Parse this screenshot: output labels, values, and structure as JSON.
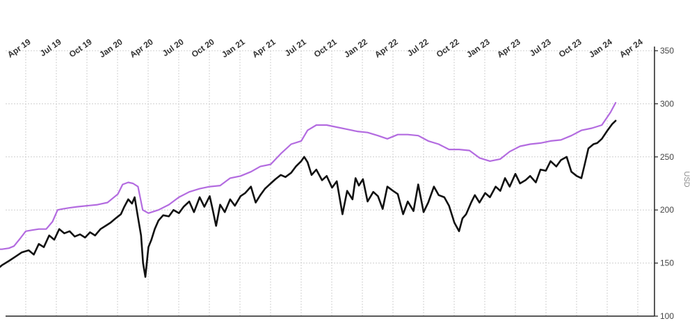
{
  "chart_data": {
    "type": "line",
    "x_tick_labels": [
      "Apr 19",
      "Jul 19",
      "Oct 19",
      "Jan 20",
      "Apr 20",
      "Jul 20",
      "Oct 20",
      "Jan 21",
      "Apr 21",
      "Jul 21",
      "Oct 21",
      "Jan 22",
      "Apr 22",
      "Jul 22",
      "Oct 22",
      "Jan 23",
      "Apr 23",
      "Jul 23",
      "Oct 23",
      "Jan 24",
      "Apr 24"
    ],
    "y_ticks": [
      100,
      150,
      200,
      250,
      300,
      350
    ],
    "ylim": [
      100,
      350
    ],
    "ylabel": "USD",
    "grid": true,
    "colors": {
      "price": "#111111",
      "high": "#b36be0",
      "grid": "#cfcfcf",
      "axis": "#222222"
    },
    "series": [
      {
        "key": "high",
        "color": "#b36be0",
        "x": [
          "2019-01-01",
          "2019-01-20",
          "2019-02-10",
          "2019-02-25",
          "2019-03-15",
          "2019-04-01",
          "2019-04-20",
          "2019-05-10",
          "2019-06-01",
          "2019-06-20",
          "2019-07-05",
          "2019-07-20",
          "2019-08-10",
          "2019-09-01",
          "2019-10-01",
          "2019-11-01",
          "2019-12-01",
          "2020-01-01",
          "2020-01-15",
          "2020-02-01",
          "2020-02-15",
          "2020-03-01",
          "2020-03-15",
          "2020-04-01",
          "2020-05-01",
          "2020-06-01",
          "2020-07-01",
          "2020-08-01",
          "2020-09-01",
          "2020-10-01",
          "2020-11-01",
          "2020-12-01",
          "2021-01-01",
          "2021-02-01",
          "2021-03-01",
          "2021-04-01",
          "2021-05-01",
          "2021-06-01",
          "2021-07-01",
          "2021-07-20",
          "2021-08-15",
          "2021-09-15",
          "2021-10-15",
          "2021-11-15",
          "2021-12-15",
          "2022-01-15",
          "2022-02-15",
          "2022-03-15",
          "2022-04-15",
          "2022-05-15",
          "2022-06-15",
          "2022-07-15",
          "2022-08-15",
          "2022-09-15",
          "2022-10-15",
          "2022-11-15",
          "2022-12-15",
          "2023-01-15",
          "2023-02-15",
          "2023-03-15",
          "2023-04-15",
          "2023-05-15",
          "2023-06-15",
          "2023-07-15",
          "2023-08-15",
          "2023-09-15",
          "2023-10-15",
          "2023-11-15",
          "2023-12-15",
          "2024-01-10",
          "2024-01-25"
        ],
        "values": [
          163,
          163,
          164,
          166,
          173,
          180,
          181,
          182,
          182,
          189,
          200,
          201,
          202,
          203,
          204,
          205,
          207,
          215,
          224,
          226,
          225,
          222,
          200,
          197,
          200,
          205,
          212,
          217,
          220,
          222,
          223,
          230,
          232,
          236,
          241,
          243,
          253,
          262,
          265,
          275,
          280,
          280,
          278,
          276,
          274,
          273,
          270,
          267,
          271,
          271,
          270,
          265,
          262,
          257,
          257,
          256,
          249,
          246,
          248,
          255,
          260,
          262,
          263,
          265,
          266,
          270,
          275,
          277,
          280,
          292,
          301
        ]
      },
      {
        "key": "price",
        "color": "#111111",
        "x": [
          "2019-01-01",
          "2019-01-20",
          "2019-02-10",
          "2019-03-01",
          "2019-03-20",
          "2019-04-10",
          "2019-04-25",
          "2019-05-10",
          "2019-05-25",
          "2019-06-10",
          "2019-06-25",
          "2019-07-10",
          "2019-07-25",
          "2019-08-10",
          "2019-08-25",
          "2019-09-10",
          "2019-09-25",
          "2019-10-10",
          "2019-10-25",
          "2019-11-10",
          "2019-11-25",
          "2019-12-10",
          "2019-12-25",
          "2020-01-10",
          "2020-01-20",
          "2020-02-01",
          "2020-02-12",
          "2020-02-20",
          "2020-03-01",
          "2020-03-10",
          "2020-03-16",
          "2020-03-23",
          "2020-04-01",
          "2020-04-10",
          "2020-04-20",
          "2020-05-01",
          "2020-05-15",
          "2020-06-01",
          "2020-06-15",
          "2020-07-01",
          "2020-07-15",
          "2020-08-01",
          "2020-08-15",
          "2020-09-01",
          "2020-09-15",
          "2020-10-01",
          "2020-10-10",
          "2020-10-20",
          "2020-11-01",
          "2020-11-15",
          "2020-12-01",
          "2020-12-15",
          "2021-01-01",
          "2021-01-15",
          "2021-02-01",
          "2021-02-15",
          "2021-03-01",
          "2021-03-15",
          "2021-04-01",
          "2021-04-15",
          "2021-05-01",
          "2021-05-15",
          "2021-06-01",
          "2021-06-15",
          "2021-07-01",
          "2021-07-10",
          "2021-07-20",
          "2021-08-01",
          "2021-08-15",
          "2021-09-01",
          "2021-09-15",
          "2021-10-01",
          "2021-10-15",
          "2021-11-01",
          "2021-11-15",
          "2021-12-01",
          "2021-12-10",
          "2021-12-20",
          "2022-01-01",
          "2022-01-15",
          "2022-02-01",
          "2022-02-15",
          "2022-03-01",
          "2022-03-15",
          "2022-04-01",
          "2022-04-15",
          "2022-05-01",
          "2022-05-15",
          "2022-06-01",
          "2022-06-15",
          "2022-07-01",
          "2022-07-15",
          "2022-08-01",
          "2022-08-15",
          "2022-09-01",
          "2022-09-15",
          "2022-10-01",
          "2022-10-15",
          "2022-10-25",
          "2022-11-05",
          "2022-11-20",
          "2022-12-01",
          "2022-12-15",
          "2023-01-01",
          "2023-01-15",
          "2023-02-01",
          "2023-02-15",
          "2023-03-01",
          "2023-03-15",
          "2023-04-01",
          "2023-04-15",
          "2023-05-01",
          "2023-05-15",
          "2023-06-01",
          "2023-06-15",
          "2023-07-01",
          "2023-07-15",
          "2023-08-01",
          "2023-08-15",
          "2023-09-01",
          "2023-09-15",
          "2023-10-01",
          "2023-10-15",
          "2023-10-25",
          "2023-11-05",
          "2023-11-20",
          "2023-12-01",
          "2023-12-15",
          "2024-01-01",
          "2024-01-15",
          "2024-01-25"
        ],
        "values": [
          143,
          148,
          152,
          156,
          160,
          162,
          158,
          168,
          165,
          176,
          172,
          182,
          178,
          180,
          175,
          177,
          174,
          179,
          176,
          182,
          185,
          188,
          192,
          196,
          203,
          210,
          206,
          212,
          193,
          176,
          150,
          137,
          165,
          172,
          182,
          190,
          195,
          194,
          200,
          197,
          203,
          208,
          198,
          212,
          203,
          213,
          200,
          185,
          205,
          198,
          210,
          204,
          213,
          216,
          222,
          207,
          214,
          220,
          225,
          229,
          233,
          231,
          235,
          241,
          246,
          250,
          245,
          233,
          238,
          228,
          232,
          221,
          227,
          196,
          218,
          210,
          230,
          223,
          229,
          208,
          217,
          213,
          201,
          222,
          218,
          215,
          196,
          208,
          199,
          224,
          198,
          207,
          222,
          214,
          212,
          204,
          188,
          180,
          192,
          196,
          207,
          214,
          207,
          216,
          212,
          222,
          218,
          230,
          222,
          234,
          225,
          228,
          232,
          226,
          238,
          237,
          246,
          241,
          247,
          250,
          236,
          232,
          230,
          243,
          258,
          262,
          263,
          267,
          275,
          281,
          284
        ]
      }
    ]
  }
}
